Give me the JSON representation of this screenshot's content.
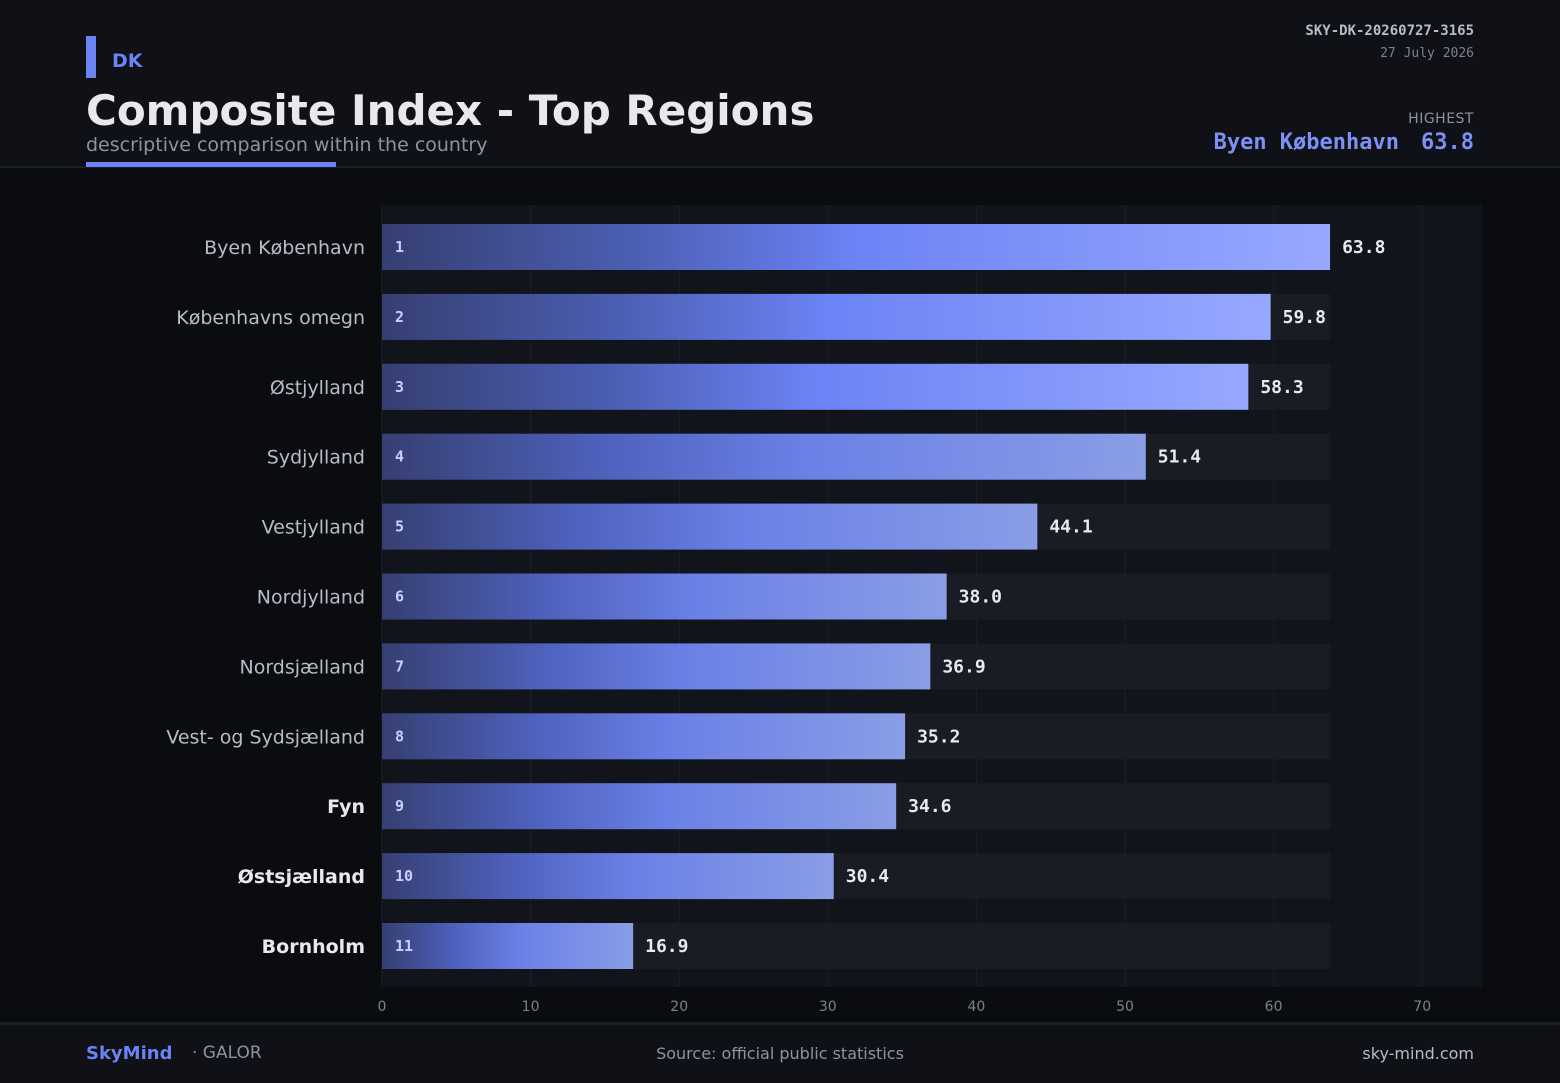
{
  "header": {
    "country": "DK",
    "title": "Composite Index - Top Regions",
    "subtitle": "descriptive comparison within the country",
    "code": "SKY-DK-20260727-3165",
    "date": "27 July 2026",
    "highest_label": "HIGHEST",
    "highest_region": "Byen København",
    "highest_value": "63.8"
  },
  "chart_data": {
    "type": "bar",
    "orientation": "horizontal",
    "categories": [
      "Byen København",
      "Københavns omegn",
      "Østjylland",
      "Sydjylland",
      "Vestjylland",
      "Nordjylland",
      "Nordsjælland",
      "Vest- og Sydsjælland",
      "Fyn",
      "Østsjælland",
      "Bornholm"
    ],
    "ranks": [
      "1",
      "2",
      "3",
      "4",
      "5",
      "6",
      "7",
      "8",
      "9",
      "10",
      "11"
    ],
    "values": [
      63.8,
      59.8,
      58.3,
      51.4,
      44.1,
      38.0,
      36.9,
      35.2,
      34.6,
      30.4,
      16.9
    ],
    "value_labels": [
      "63.8",
      "59.8",
      "58.3",
      "51.4",
      "44.1",
      "38.0",
      "36.9",
      "35.2",
      "34.6",
      "30.4",
      "16.9"
    ],
    "highlighted": [
      false,
      false,
      false,
      false,
      false,
      false,
      false,
      false,
      true,
      true,
      true
    ],
    "xlim": [
      0,
      74
    ],
    "xticks": [
      "0",
      "10",
      "20",
      "30",
      "40",
      "50",
      "60",
      "70"
    ],
    "grid": true,
    "colors": {
      "accent": "#6b83f5",
      "bar_start": "#363f72",
      "bar_end": "#98a8ff",
      "track": "#191c24"
    }
  },
  "footer": {
    "brand": "SkyMind",
    "brand_sub": "· GALOR",
    "source": "Source: official public statistics",
    "site": "sky-mind.com"
  }
}
